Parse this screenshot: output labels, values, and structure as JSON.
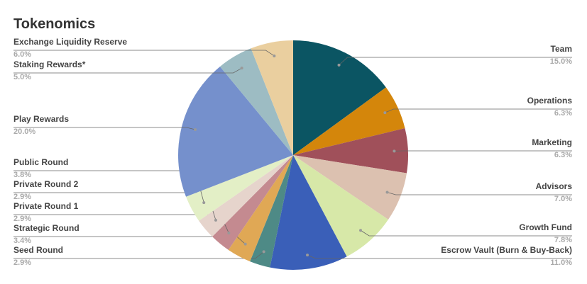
{
  "chart_data": {
    "type": "pie",
    "title": "Tokenomics",
    "categories": [
      "Team",
      "Operations",
      "Marketing",
      "Advisors",
      "Growth Fund",
      "Escrow Vault (Burn & Buy-Back)",
      "Seed Round",
      "Strategic Round",
      "Private Round 1",
      "Private Round 2",
      "Public Round",
      "Play Rewards",
      "Staking Rewards*",
      "Exchange Liquidity Reserve"
    ],
    "values": [
      15.0,
      6.3,
      6.3,
      7.0,
      7.8,
      11.0,
      2.9,
      3.4,
      2.9,
      2.9,
      3.8,
      20.0,
      5.0,
      6.0
    ],
    "value_labels": [
      "15.0%",
      "6.3%",
      "6.3%",
      "7.0%",
      "7.8%",
      "11.0%",
      "2.9%",
      "3.4%",
      "2.9%",
      "2.9%",
      "3.8%",
      "20.0%",
      "5.0%",
      "6.0%"
    ],
    "colors": [
      "#0b5563",
      "#d4860b",
      "#a0505a",
      "#dcc1b0",
      "#d7e8a8",
      "#3a5fb8",
      "#4e8a86",
      "#e0a855",
      "#c48a90",
      "#e6d4cc",
      "#e3efc6",
      "#7590cc",
      "#9dbcc3",
      "#eacf9f"
    ]
  }
}
